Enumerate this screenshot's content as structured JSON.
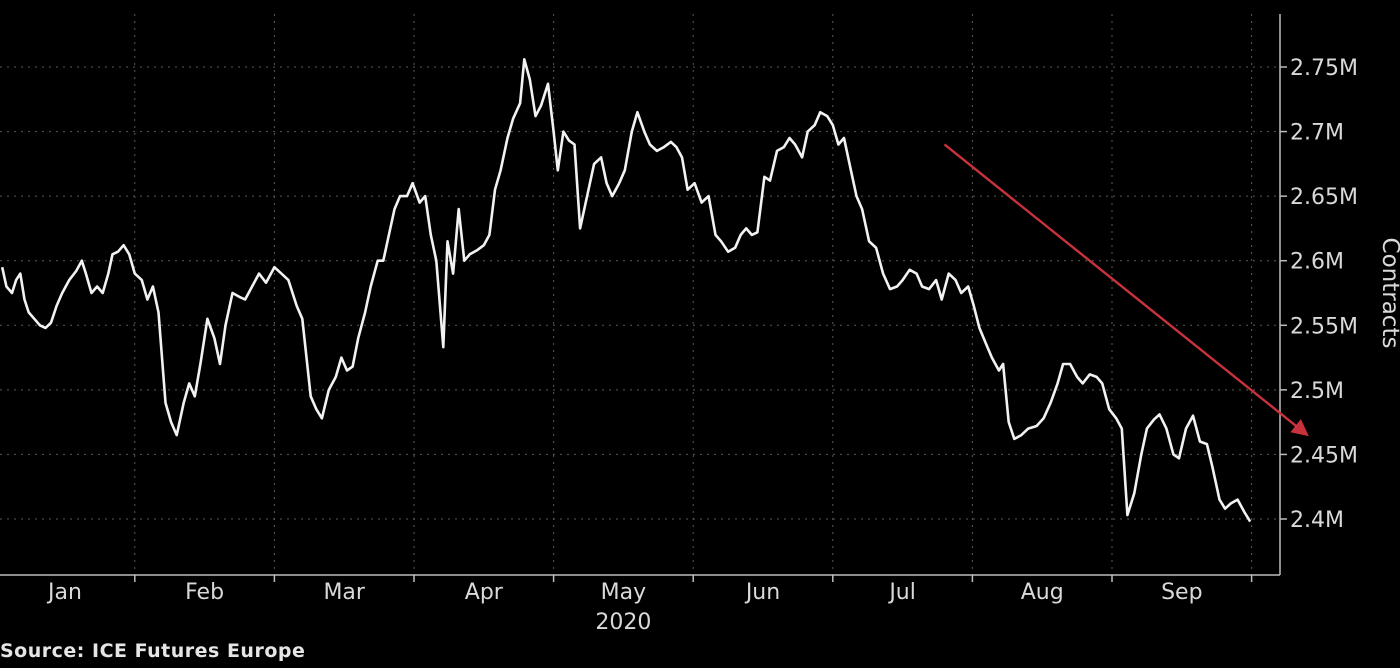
{
  "source_label": "Source: ICE Futures Europe",
  "chart_data": {
    "type": "line",
    "ylabel": "Contracts",
    "year_label": "2020",
    "ylim": [
      2.37,
      2.79
    ],
    "y_ticks": [
      {
        "value": 2.4,
        "label": "2.4M"
      },
      {
        "value": 2.45,
        "label": "2.45M"
      },
      {
        "value": 2.5,
        "label": "2.5M"
      },
      {
        "value": 2.55,
        "label": "2.55M"
      },
      {
        "value": 2.6,
        "label": "2.6M"
      },
      {
        "value": 2.65,
        "label": "2.65M"
      },
      {
        "value": 2.7,
        "label": "2.7M"
      },
      {
        "value": 2.75,
        "label": "2.75M"
      }
    ],
    "x_ticks": [
      "Jan",
      "Feb",
      "Mar",
      "Apr",
      "May",
      "Jun",
      "Jul",
      "Aug",
      "Sep"
    ],
    "colors": {
      "line": "#f2f2f2",
      "grid": "#5a5a5a",
      "trend_arrow": "#c8323c",
      "text": "#d9d9d9"
    },
    "trend_arrow": {
      "start": {
        "month": 6.3,
        "value": 2.69
      },
      "end": {
        "month": 8.9,
        "value": 2.465
      }
    },
    "series": [
      {
        "points": [
          [
            -0.45,
            2.595
          ],
          [
            -0.42,
            2.58
          ],
          [
            -0.38,
            2.575
          ],
          [
            -0.35,
            2.585
          ],
          [
            -0.32,
            2.59
          ],
          [
            -0.29,
            2.57
          ],
          [
            -0.26,
            2.56
          ],
          [
            -0.22,
            2.555
          ],
          [
            -0.18,
            2.55
          ],
          [
            -0.14,
            2.548
          ],
          [
            -0.1,
            2.552
          ],
          [
            -0.06,
            2.565
          ],
          [
            -0.02,
            2.575
          ],
          [
            0.03,
            2.585
          ],
          [
            0.08,
            2.592
          ],
          [
            0.12,
            2.6
          ],
          [
            0.15,
            2.59
          ],
          [
            0.19,
            2.575
          ],
          [
            0.23,
            2.58
          ],
          [
            0.27,
            2.575
          ],
          [
            0.31,
            2.59
          ],
          [
            0.34,
            2.605
          ],
          [
            0.38,
            2.607
          ],
          [
            0.42,
            2.612
          ],
          [
            0.46,
            2.605
          ],
          [
            0.5,
            2.59
          ],
          [
            0.55,
            2.585
          ],
          [
            0.59,
            2.57
          ],
          [
            0.63,
            2.58
          ],
          [
            0.67,
            2.56
          ],
          [
            0.72,
            2.49
          ],
          [
            0.76,
            2.475
          ],
          [
            0.8,
            2.465
          ],
          [
            0.85,
            2.49
          ],
          [
            0.89,
            2.505
          ],
          [
            0.93,
            2.495
          ],
          [
            0.97,
            2.52
          ],
          [
            1.02,
            2.555
          ],
          [
            1.07,
            2.54
          ],
          [
            1.11,
            2.52
          ],
          [
            1.15,
            2.55
          ],
          [
            1.2,
            2.575
          ],
          [
            1.25,
            2.572
          ],
          [
            1.29,
            2.57
          ],
          [
            1.34,
            2.58
          ],
          [
            1.39,
            2.59
          ],
          [
            1.44,
            2.583
          ],
          [
            1.5,
            2.595
          ],
          [
            1.55,
            2.59
          ],
          [
            1.6,
            2.585
          ],
          [
            1.66,
            2.565
          ],
          [
            1.7,
            2.555
          ],
          [
            1.76,
            2.495
          ],
          [
            1.8,
            2.485
          ],
          [
            1.84,
            2.478
          ],
          [
            1.89,
            2.5
          ],
          [
            1.94,
            2.51
          ],
          [
            1.98,
            2.525
          ],
          [
            2.02,
            2.515
          ],
          [
            2.06,
            2.518
          ],
          [
            2.1,
            2.54
          ],
          [
            2.15,
            2.56
          ],
          [
            2.19,
            2.58
          ],
          [
            2.24,
            2.6
          ],
          [
            2.28,
            2.6
          ],
          [
            2.32,
            2.62
          ],
          [
            2.36,
            2.64
          ],
          [
            2.4,
            2.65
          ],
          [
            2.45,
            2.65
          ],
          [
            2.49,
            2.66
          ],
          [
            2.54,
            2.645
          ],
          [
            2.58,
            2.65
          ],
          [
            2.62,
            2.62
          ],
          [
            2.66,
            2.6
          ],
          [
            2.71,
            2.533
          ],
          [
            2.74,
            2.615
          ],
          [
            2.78,
            2.59
          ],
          [
            2.82,
            2.64
          ],
          [
            2.86,
            2.6
          ],
          [
            2.9,
            2.605
          ],
          [
            2.95,
            2.608
          ],
          [
            3.0,
            2.612
          ],
          [
            3.04,
            2.62
          ],
          [
            3.08,
            2.655
          ],
          [
            3.12,
            2.67
          ],
          [
            3.17,
            2.695
          ],
          [
            3.21,
            2.71
          ],
          [
            3.26,
            2.722
          ],
          [
            3.29,
            2.756
          ],
          [
            3.33,
            2.74
          ],
          [
            3.37,
            2.712
          ],
          [
            3.41,
            2.72
          ],
          [
            3.46,
            2.737
          ],
          [
            3.5,
            2.7
          ],
          [
            3.53,
            2.67
          ],
          [
            3.57,
            2.7
          ],
          [
            3.61,
            2.693
          ],
          [
            3.65,
            2.69
          ],
          [
            3.69,
            2.625
          ],
          [
            3.74,
            2.65
          ],
          [
            3.79,
            2.675
          ],
          [
            3.84,
            2.68
          ],
          [
            3.88,
            2.66
          ],
          [
            3.92,
            2.65
          ],
          [
            3.97,
            2.66
          ],
          [
            4.01,
            2.67
          ],
          [
            4.06,
            2.7
          ],
          [
            4.1,
            2.715
          ],
          [
            4.15,
            2.7
          ],
          [
            4.19,
            2.69
          ],
          [
            4.24,
            2.685
          ],
          [
            4.29,
            2.688
          ],
          [
            4.34,
            2.692
          ],
          [
            4.38,
            2.688
          ],
          [
            4.42,
            2.68
          ],
          [
            4.46,
            2.655
          ],
          [
            4.51,
            2.66
          ],
          [
            4.56,
            2.645
          ],
          [
            4.61,
            2.65
          ],
          [
            4.66,
            2.62
          ],
          [
            4.7,
            2.615
          ],
          [
            4.75,
            2.607
          ],
          [
            4.8,
            2.61
          ],
          [
            4.84,
            2.62
          ],
          [
            4.88,
            2.625
          ],
          [
            4.92,
            2.62
          ],
          [
            4.96,
            2.622
          ],
          [
            5.01,
            2.665
          ],
          [
            5.05,
            2.662
          ],
          [
            5.1,
            2.685
          ],
          [
            5.15,
            2.688
          ],
          [
            5.19,
            2.695
          ],
          [
            5.23,
            2.69
          ],
          [
            5.28,
            2.68
          ],
          [
            5.32,
            2.7
          ],
          [
            5.37,
            2.705
          ],
          [
            5.41,
            2.715
          ],
          [
            5.46,
            2.712
          ],
          [
            5.5,
            2.705
          ],
          [
            5.54,
            2.69
          ],
          [
            5.58,
            2.695
          ],
          [
            5.63,
            2.67
          ],
          [
            5.67,
            2.65
          ],
          [
            5.71,
            2.64
          ],
          [
            5.76,
            2.615
          ],
          [
            5.81,
            2.61
          ],
          [
            5.86,
            2.59
          ],
          [
            5.91,
            2.578
          ],
          [
            5.96,
            2.58
          ],
          [
            6.0,
            2.585
          ],
          [
            6.05,
            2.593
          ],
          [
            6.1,
            2.59
          ],
          [
            6.14,
            2.58
          ],
          [
            6.19,
            2.578
          ],
          [
            6.24,
            2.585
          ],
          [
            6.28,
            2.57
          ],
          [
            6.33,
            2.59
          ],
          [
            6.38,
            2.585
          ],
          [
            6.42,
            2.575
          ],
          [
            6.47,
            2.58
          ],
          [
            6.51,
            2.565
          ],
          [
            6.55,
            2.548
          ],
          [
            6.6,
            2.535
          ],
          [
            6.64,
            2.525
          ],
          [
            6.69,
            2.515
          ],
          [
            6.72,
            2.52
          ],
          [
            6.76,
            2.475
          ],
          [
            6.8,
            2.462
          ],
          [
            6.85,
            2.465
          ],
          [
            6.9,
            2.47
          ],
          [
            6.96,
            2.472
          ],
          [
            7.01,
            2.478
          ],
          [
            7.06,
            2.49
          ],
          [
            7.11,
            2.505
          ],
          [
            7.15,
            2.52
          ],
          [
            7.2,
            2.52
          ],
          [
            7.25,
            2.51
          ],
          [
            7.29,
            2.505
          ],
          [
            7.34,
            2.512
          ],
          [
            7.39,
            2.51
          ],
          [
            7.43,
            2.505
          ],
          [
            7.48,
            2.485
          ],
          [
            7.53,
            2.478
          ],
          [
            7.57,
            2.47
          ],
          [
            7.61,
            2.403
          ],
          [
            7.66,
            2.42
          ],
          [
            7.71,
            2.45
          ],
          [
            7.75,
            2.47
          ],
          [
            7.8,
            2.477
          ],
          [
            7.84,
            2.481
          ],
          [
            7.89,
            2.47
          ],
          [
            7.94,
            2.45
          ],
          [
            7.98,
            2.447
          ],
          [
            8.03,
            2.47
          ],
          [
            8.08,
            2.48
          ],
          [
            8.13,
            2.46
          ],
          [
            8.18,
            2.458
          ],
          [
            8.22,
            2.44
          ],
          [
            8.27,
            2.415
          ],
          [
            8.31,
            2.408
          ],
          [
            8.35,
            2.412
          ],
          [
            8.4,
            2.415
          ],
          [
            8.45,
            2.405
          ],
          [
            8.49,
            2.398
          ]
        ]
      }
    ]
  }
}
